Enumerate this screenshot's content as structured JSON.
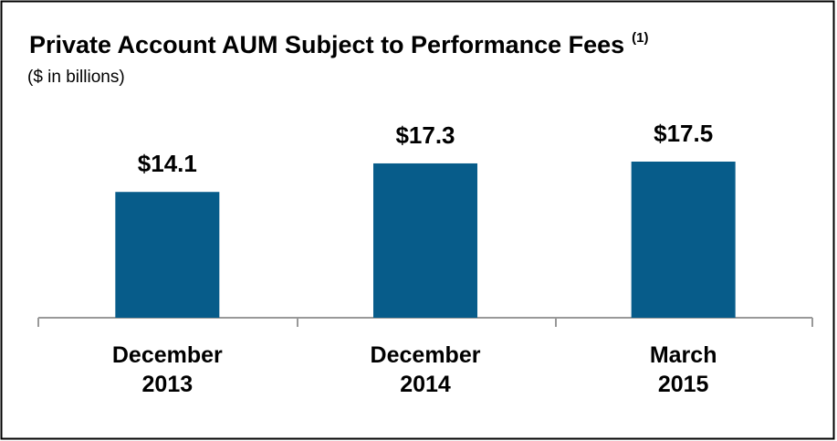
{
  "chart_data": {
    "type": "bar",
    "title": "Private Account AUM Subject to Performance Fees",
    "title_note": "(1)",
    "subtitle": "($ in billions)",
    "categories": [
      "December 2013",
      "December 2014",
      "March 2015"
    ],
    "values": [
      14.1,
      17.3,
      17.5
    ],
    "value_labels": [
      "$14.1",
      "$17.3",
      "$17.5"
    ],
    "color": "#075c8a"
  }
}
